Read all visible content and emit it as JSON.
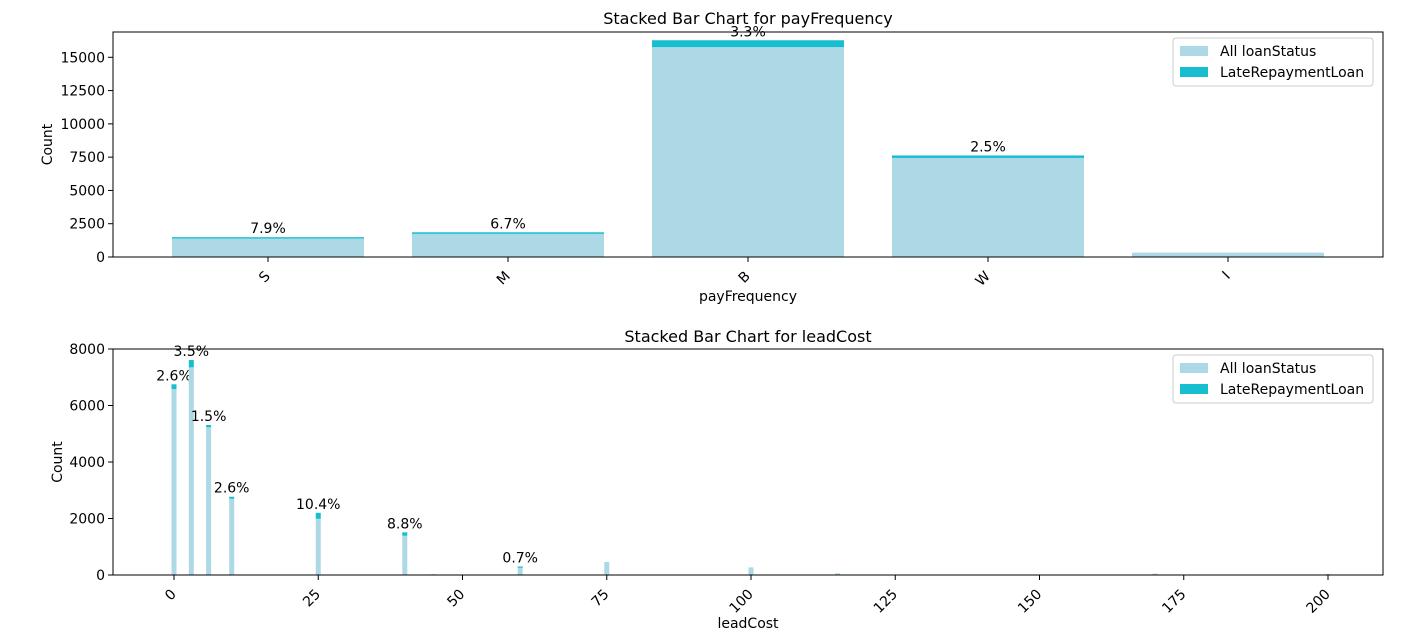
{
  "colors": {
    "all": "#add8e6",
    "late": "#17becf",
    "axis": "#000000",
    "legend_border": "#cccccc"
  },
  "chart_data": [
    {
      "type": "bar",
      "stacked": true,
      "title": "Stacked Bar Chart for payFrequency",
      "xlabel": "payFrequency",
      "ylabel": "Count",
      "ylim": [
        0,
        16900
      ],
      "yticks": [
        "0",
        "2500",
        "5000",
        "7500",
        "10000",
        "12500",
        "15000"
      ],
      "yticks_values": [
        0,
        2500,
        5000,
        7500,
        10000,
        12500,
        15000
      ],
      "categories": [
        "S",
        "M",
        "B",
        "W",
        "I"
      ],
      "series": [
        {
          "name": "All loanStatus",
          "values": [
            1380,
            1740,
            15760,
            7440,
            330
          ]
        },
        {
          "name": "LateRepaymentLoan",
          "values": [
            109,
            117,
            520,
            186,
            0
          ]
        }
      ],
      "annotations": [
        "7.9%",
        "6.7%",
        "3.3%",
        "2.5%",
        ""
      ],
      "legend": [
        "All loanStatus",
        "LateRepaymentLoan"
      ],
      "legend_position": "top-right",
      "grid": false
    },
    {
      "type": "bar",
      "stacked": true,
      "title": "Stacked Bar Chart for leadCost",
      "xlabel": "leadCost",
      "ylabel": "Count",
      "xlim": [
        -10,
        210
      ],
      "ylim": [
        0,
        8000
      ],
      "xticks": [
        "0",
        "25",
        "50",
        "75",
        "100",
        "125",
        "150",
        "175",
        "200"
      ],
      "xticks_values": [
        0,
        25,
        50,
        75,
        100,
        125,
        150,
        175,
        200
      ],
      "yticks": [
        "0",
        "2000",
        "4000",
        "6000",
        "8000"
      ],
      "yticks_values": [
        0,
        2000,
        4000,
        6000,
        8000
      ],
      "x": [
        0,
        3,
        6,
        10,
        25,
        40,
        45,
        60,
        75,
        100,
        115,
        170,
        200
      ],
      "series": [
        {
          "name": "All loanStatus",
          "values": [
            6580,
            7350,
            5230,
            2700,
            1990,
            1390,
            30,
            300,
            460,
            270,
            60,
            50,
            40
          ]
        },
        {
          "name": "LateRepaymentLoan",
          "values": [
            170,
            260,
            80,
            70,
            210,
            120,
            0,
            2,
            0,
            0,
            0,
            0,
            0
          ]
        }
      ],
      "annotations": [
        "2.6%",
        "3.5%",
        "1.5%",
        "2.6%",
        "10.4%",
        "8.8%",
        "",
        "0.7%",
        "",
        "",
        "",
        "",
        ""
      ],
      "legend": [
        "All loanStatus",
        "LateRepaymentLoan"
      ],
      "legend_position": "top-right",
      "grid": false
    }
  ]
}
